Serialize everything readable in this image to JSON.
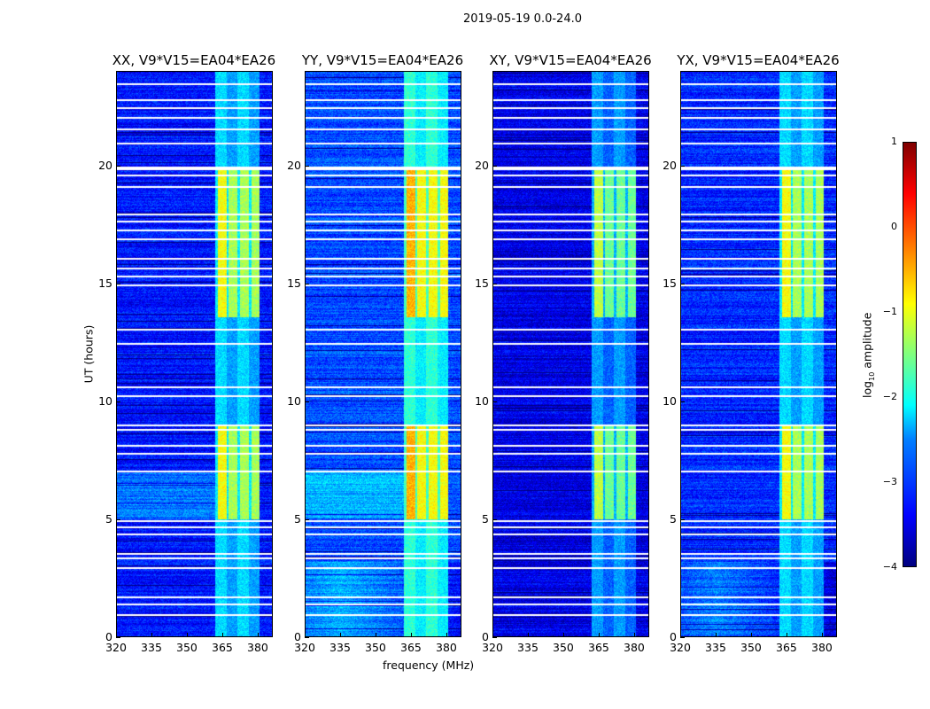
{
  "chart_data": {
    "type": "heatmap",
    "title": "2019-05-19 0.0-24.0",
    "xlabel": "frequency (MHz)",
    "ylabel": "UT (hours)",
    "xlim": [
      320,
      386.4
    ],
    "ylim": [
      0,
      24
    ],
    "xticks": [
      "320",
      "335",
      "350",
      "365",
      "380"
    ],
    "xtick_values": [
      320,
      335,
      350,
      365,
      380
    ],
    "yticks": [
      "0",
      "5",
      "10",
      "15",
      "20"
    ],
    "ytick_values": [
      0,
      5,
      10,
      15,
      20
    ],
    "panels": [
      {
        "title": "XX, V9*V15=EA04*EA26",
        "bg": -3.3,
        "band": -1.3
      },
      {
        "title": "YY, V9*V15=EA04*EA26",
        "bg": -3.0,
        "band": -0.9
      },
      {
        "title": "XY, V9*V15=EA04*EA26",
        "bg": -3.5,
        "band": -1.6
      },
      {
        "title": "YX, V9*V15=EA04*EA26",
        "bg": -3.2,
        "band": -1.3
      }
    ],
    "rfi_band_mhz": [
      362,
      381
    ],
    "bright_hours": [
      [
        5,
        9
      ],
      [
        13.6,
        20
      ]
    ],
    "flagged_hours": [
      1.0,
      1.45,
      1.75,
      3.0,
      3.4,
      3.6,
      4.45,
      4.75,
      5.0,
      7.1,
      7.85,
      8.2,
      8.85,
      9.05,
      10.3,
      10.65,
      12.5,
      13.1,
      15.0,
      15.35,
      15.7,
      16.1,
      16.95,
      17.3,
      17.7,
      18.0,
      19.15,
      19.65,
      19.9,
      20.0,
      21.0,
      21.6,
      22.1,
      22.5,
      22.85,
      23.5
    ],
    "colorbar": {
      "label": "log10 amplitude",
      "label_prefix": "log",
      "label_sub": "10",
      "label_suffix": " amplitude",
      "range": [
        -4,
        1
      ],
      "ticks": [
        "1",
        "0",
        "−1",
        "−2",
        "−3",
        "−4"
      ],
      "tick_values": [
        1,
        0,
        -1,
        -2,
        -3,
        -4
      ],
      "colormap": "jet"
    }
  }
}
